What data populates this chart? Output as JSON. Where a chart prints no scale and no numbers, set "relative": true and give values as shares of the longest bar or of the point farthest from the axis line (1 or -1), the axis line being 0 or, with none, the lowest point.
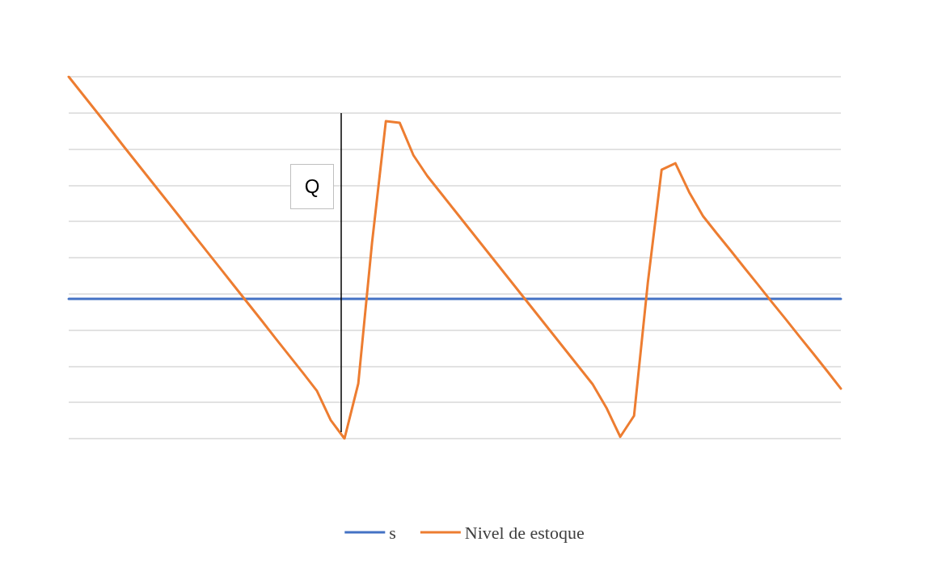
{
  "chart_data": {
    "type": "line",
    "relative": true,
    "grid": "y",
    "legend": "bottom",
    "marker": "none",
    "line_style": "solid",
    "categories": [
      null,
      null,
      null,
      null,
      null,
      null,
      null,
      null,
      null,
      null,
      null,
      null,
      null,
      null,
      null,
      null,
      null,
      null,
      null,
      null,
      null,
      null,
      null,
      null,
      null,
      null,
      null,
      null,
      null,
      null,
      null,
      null,
      null,
      null,
      null,
      null,
      null,
      null,
      null,
      null,
      null,
      null,
      null,
      null,
      null,
      null,
      null,
      null,
      null,
      null,
      null,
      null,
      null,
      null,
      null,
      null,
      null
    ],
    "series": [
      {
        "name": "s",
        "color": "#4472c4",
        "values": [
          0.386,
          0.386,
          0.386,
          0.386,
          0.386,
          0.386,
          0.386,
          0.386,
          0.386,
          0.386,
          0.386,
          0.386,
          0.386,
          0.386,
          0.386,
          0.386,
          0.386,
          0.386,
          0.386,
          0.386,
          0.386,
          0.386,
          0.386,
          0.386,
          0.386,
          0.386,
          0.386,
          0.386,
          0.386,
          0.386,
          0.386,
          0.386,
          0.386,
          0.386,
          0.386,
          0.386,
          0.386,
          0.386,
          0.386,
          0.386,
          0.386,
          0.386,
          0.386,
          0.386,
          0.386,
          0.386,
          0.386,
          0.386,
          0.386,
          0.386,
          0.386,
          0.386,
          0.386,
          0.386,
          0.386,
          0.386,
          0.386
        ]
      },
      {
        "name": "Nivel de estoque",
        "color": "#ed7d31",
        "values": [
          1.0,
          0.952,
          0.904,
          0.856,
          0.807,
          0.759,
          0.711,
          0.663,
          0.615,
          0.566,
          0.518,
          0.47,
          0.422,
          0.374,
          0.326,
          0.277,
          0.229,
          0.181,
          0.132,
          0.051,
          0,
          0.152,
          0.542,
          0.877,
          0.873,
          0.783,
          0.726,
          0.678,
          0.63,
          0.582,
          0.534,
          0.486,
          0.438,
          0.39,
          0.342,
          0.294,
          0.246,
          0.198,
          0.15,
          0.085,
          0.005,
          0.063,
          0.431,
          0.743,
          0.761,
          0.681,
          0.615,
          0.567,
          0.52,
          0.472,
          0.425,
          0.377,
          0.33,
          0.282,
          0.235,
          0.187,
          0.138
        ]
      }
    ],
    "annotations": [
      "Q"
    ]
  }
}
